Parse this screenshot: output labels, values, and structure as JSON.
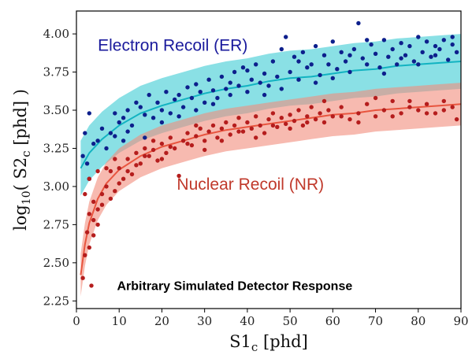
{
  "chart_data": {
    "type": "scatter",
    "title": "",
    "xlabel": {
      "main": "S1",
      "sub": "c",
      "tail": " [phd]"
    },
    "ylabel": {
      "pre": "log",
      "pre_sub": "10",
      "mid": "( S2",
      "mid_sub": "c",
      "tail": " [phd] )"
    },
    "xlim": [
      0,
      90
    ],
    "ylim": [
      2.2,
      4.15
    ],
    "xticks": [
      0,
      10,
      20,
      30,
      40,
      50,
      60,
      70,
      80,
      90
    ],
    "yticks": [
      2.25,
      2.5,
      2.75,
      3.0,
      3.25,
      3.5,
      3.75,
      4.0
    ],
    "ytick_labels": [
      "2.25",
      "2.50",
      "2.75",
      "3.00",
      "3.25",
      "3.50",
      "3.75",
      "4.00"
    ],
    "grid": false,
    "annotations": [
      {
        "id": "er",
        "text": "Electron Recoil (ER)",
        "x": 5,
        "y": 3.89,
        "color": "#1a1a9c"
      },
      {
        "id": "nr",
        "text": "Nuclear Recoil (NR)",
        "x": 23.5,
        "y": 2.98,
        "color": "#c0392b"
      },
      {
        "id": "sim",
        "text": "Arbitrary Simulated Detector Response",
        "x": 9.5,
        "y": 2.32,
        "color": "#000000"
      }
    ],
    "series": [
      {
        "band_color": "#29c6cf",
        "band_opacity": 0.55,
        "line_color": "#12b3c1",
        "point_color": "#0d1f8c",
        "band_center": {
          "x": [
            1,
            3,
            6,
            10,
            15,
            20,
            25,
            30,
            35,
            40,
            45,
            50,
            55,
            60,
            65,
            70,
            75,
            80,
            85,
            90
          ],
          "y": [
            3.12,
            3.22,
            3.31,
            3.4,
            3.48,
            3.53,
            3.57,
            3.61,
            3.64,
            3.66,
            3.69,
            3.71,
            3.72,
            3.74,
            3.76,
            3.77,
            3.79,
            3.8,
            3.81,
            3.82
          ]
        },
        "band_half_width": 0.18,
        "points": [
          [
            1.5,
            3.2
          ],
          [
            2.5,
            3.15
          ],
          [
            3,
            3.05
          ],
          [
            2,
            3.35
          ],
          [
            3,
            3.48
          ],
          [
            4,
            3.28
          ],
          [
            5,
            3.3
          ],
          [
            6,
            3.38
          ],
          [
            7,
            3.25
          ],
          [
            8,
            3.35
          ],
          [
            9,
            3.48
          ],
          [
            10,
            3.42
          ],
          [
            11,
            3.45
          ],
          [
            12,
            3.5
          ],
          [
            9,
            3.33
          ],
          [
            13,
            3.4
          ],
          [
            14,
            3.55
          ],
          [
            11,
            3.3
          ],
          [
            15,
            3.52
          ],
          [
            16,
            3.47
          ],
          [
            17,
            3.6
          ],
          [
            18,
            3.45
          ],
          [
            19,
            3.55
          ],
          [
            20,
            3.5
          ],
          [
            21,
            3.62
          ],
          [
            22,
            3.48
          ],
          [
            23,
            3.57
          ],
          [
            24,
            3.6
          ],
          [
            25,
            3.52
          ],
          [
            26,
            3.65
          ],
          [
            27,
            3.58
          ],
          [
            28,
            3.67
          ],
          [
            29,
            3.62
          ],
          [
            30,
            3.55
          ],
          [
            31,
            3.7
          ],
          [
            32,
            3.63
          ],
          [
            33,
            3.58
          ],
          [
            34,
            3.72
          ],
          [
            35,
            3.64
          ],
          [
            36,
            3.6
          ],
          [
            37,
            3.75
          ],
          [
            38,
            3.66
          ],
          [
            39,
            3.78
          ],
          [
            40,
            3.62
          ],
          [
            41,
            3.7
          ],
          [
            42,
            3.8
          ],
          [
            43,
            3.68
          ],
          [
            44,
            3.74
          ],
          [
            45,
            3.66
          ],
          [
            46,
            3.82
          ],
          [
            47,
            3.72
          ],
          [
            48,
            3.9
          ],
          [
            49,
            3.98
          ],
          [
            50,
            3.75
          ],
          [
            51,
            3.85
          ],
          [
            52,
            3.7
          ],
          [
            53,
            3.88
          ],
          [
            54,
            3.78
          ],
          [
            55,
            3.8
          ],
          [
            56,
            3.92
          ],
          [
            57,
            3.73
          ],
          [
            58,
            3.86
          ],
          [
            59,
            3.8
          ],
          [
            60,
            3.95
          ],
          [
            61,
            3.77
          ],
          [
            62,
            3.88
          ],
          [
            63,
            3.82
          ],
          [
            64,
            3.75
          ],
          [
            65,
            3.9
          ],
          [
            66,
            4.07
          ],
          [
            67,
            3.84
          ],
          [
            68,
            3.8
          ],
          [
            69,
            3.93
          ],
          [
            70,
            3.87
          ],
          [
            71,
            3.78
          ],
          [
            72,
            3.96
          ],
          [
            73,
            3.85
          ],
          [
            74,
            3.9
          ],
          [
            75,
            3.8
          ],
          [
            76,
            3.94
          ],
          [
            77,
            3.86
          ],
          [
            78,
            3.92
          ],
          [
            79,
            3.82
          ],
          [
            80,
            3.98
          ],
          [
            81,
            3.88
          ],
          [
            82,
            3.95
          ],
          [
            83,
            3.85
          ],
          [
            84,
            3.92
          ],
          [
            85,
            3.9
          ],
          [
            86,
            3.96
          ],
          [
            87,
            3.83
          ],
          [
            88,
            3.93
          ],
          [
            89,
            3.88
          ],
          [
            12,
            3.36
          ],
          [
            16,
            3.32
          ],
          [
            20,
            3.42
          ],
          [
            24,
            3.46
          ],
          [
            28,
            3.5
          ],
          [
            32,
            3.54
          ],
          [
            36,
            3.68
          ],
          [
            40,
            3.76
          ],
          [
            44,
            3.6
          ],
          [
            48,
            3.64
          ],
          [
            52,
            3.82
          ],
          [
            56,
            3.68
          ],
          [
            60,
            3.71
          ],
          [
            64,
            3.86
          ],
          [
            68,
            3.96
          ],
          [
            72,
            3.74
          ],
          [
            76,
            3.84
          ],
          [
            80,
            3.8
          ],
          [
            84,
            3.86
          ],
          [
            88,
            3.98
          ]
        ]
      },
      {
        "band_color": "#f28c7c",
        "band_opacity": 0.6,
        "line_color": "#e8553f",
        "point_color": "#b51d1d",
        "band_center": {
          "x": [
            1,
            2,
            3,
            5,
            7,
            10,
            15,
            20,
            25,
            30,
            35,
            40,
            45,
            50,
            55,
            60,
            65,
            70,
            75,
            80,
            85,
            90
          ],
          "y": [
            2.42,
            2.62,
            2.76,
            2.92,
            3.02,
            3.11,
            3.2,
            3.26,
            3.3,
            3.34,
            3.37,
            3.39,
            3.41,
            3.43,
            3.45,
            3.47,
            3.48,
            3.5,
            3.51,
            3.52,
            3.53,
            3.54
          ]
        },
        "band_half_width": 0.14,
        "points": [
          [
            1.5,
            2.4
          ],
          [
            2,
            2.55
          ],
          [
            2.5,
            2.7
          ],
          [
            3,
            2.82
          ],
          [
            3.5,
            2.35
          ],
          [
            4,
            2.9
          ],
          [
            5,
            2.85
          ],
          [
            6,
            2.95
          ],
          [
            7,
            3.0
          ],
          [
            8,
            3.1
          ],
          [
            9,
            2.97
          ],
          [
            10,
            3.12
          ],
          [
            11,
            3.05
          ],
          [
            12,
            3.18
          ],
          [
            13,
            3.08
          ],
          [
            14,
            3.22
          ],
          [
            15,
            3.15
          ],
          [
            16,
            3.25
          ],
          [
            17,
            3.2
          ],
          [
            18,
            3.3
          ],
          [
            19,
            3.17
          ],
          [
            20,
            3.28
          ],
          [
            21,
            3.22
          ],
          [
            22,
            3.32
          ],
          [
            23,
            3.25
          ],
          [
            24,
            3.07
          ],
          [
            25,
            3.3
          ],
          [
            26,
            3.35
          ],
          [
            27,
            3.27
          ],
          [
            28,
            3.33
          ],
          [
            29,
            3.38
          ],
          [
            30,
            3.3
          ],
          [
            31,
            3.36
          ],
          [
            32,
            3.4
          ],
          [
            33,
            3.32
          ],
          [
            34,
            3.38
          ],
          [
            35,
            3.42
          ],
          [
            36,
            3.34
          ],
          [
            37,
            3.4
          ],
          [
            38,
            3.45
          ],
          [
            39,
            3.36
          ],
          [
            40,
            3.42
          ],
          [
            41,
            3.38
          ],
          [
            42,
            3.46
          ],
          [
            43,
            3.4
          ],
          [
            44,
            3.35
          ],
          [
            45,
            3.44
          ],
          [
            46,
            3.48
          ],
          [
            47,
            3.39
          ],
          [
            48,
            3.45
          ],
          [
            49,
            3.41
          ],
          [
            50,
            3.47
          ],
          [
            51,
            3.43
          ],
          [
            52,
            3.5
          ],
          [
            53,
            3.4
          ],
          [
            54,
            3.46
          ],
          [
            55,
            3.52
          ],
          [
            56,
            3.44
          ],
          [
            57,
            3.48
          ],
          [
            58,
            3.42
          ],
          [
            59,
            3.5
          ],
          [
            60,
            3.46
          ],
          [
            62,
            3.52
          ],
          [
            64,
            3.44
          ],
          [
            66,
            3.48
          ],
          [
            68,
            3.54
          ],
          [
            70,
            3.46
          ],
          [
            72,
            3.5
          ],
          [
            74,
            3.56
          ],
          [
            76,
            3.48
          ],
          [
            78,
            3.52
          ],
          [
            80,
            3.5
          ],
          [
            82,
            3.54
          ],
          [
            84,
            3.48
          ],
          [
            86,
            3.56
          ],
          [
            88,
            3.52
          ],
          [
            89,
            3.44
          ],
          [
            2,
            2.95
          ],
          [
            3,
            3.05
          ],
          [
            4,
            2.78
          ],
          [
            5,
            3.1
          ],
          [
            6,
            2.88
          ],
          [
            7,
            3.12
          ],
          [
            8,
            2.92
          ],
          [
            9,
            3.18
          ],
          [
            10,
            3.02
          ],
          [
            12,
            3.1
          ],
          [
            14,
            3.14
          ],
          [
            16,
            3.2
          ],
          [
            18,
            3.24
          ],
          [
            20,
            3.18
          ],
          [
            22,
            3.26
          ],
          [
            26,
            3.28
          ],
          [
            28,
            3.4
          ],
          [
            30,
            3.24
          ],
          [
            34,
            3.3
          ],
          [
            38,
            3.36
          ],
          [
            42,
            3.32
          ],
          [
            46,
            3.4
          ],
          [
            50,
            3.38
          ],
          [
            54,
            3.42
          ],
          [
            58,
            3.56
          ],
          [
            62,
            3.46
          ],
          [
            66,
            3.42
          ],
          [
            70,
            3.58
          ],
          [
            74,
            3.46
          ],
          [
            78,
            3.56
          ],
          [
            82,
            3.48
          ],
          [
            86,
            3.5
          ],
          [
            3,
            2.6
          ],
          [
            4,
            2.68
          ],
          [
            5,
            2.75
          ]
        ]
      }
    ]
  }
}
